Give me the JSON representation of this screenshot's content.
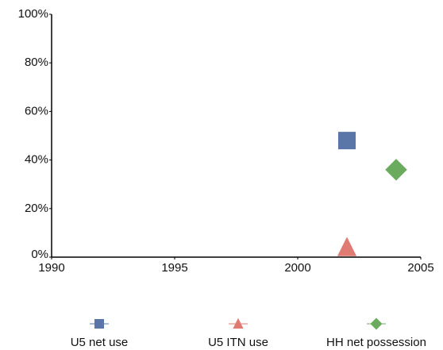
{
  "chart_data": {
    "type": "scatter",
    "xlim": [
      1990,
      2005
    ],
    "xticks": [
      1990,
      1995,
      2000,
      2005
    ],
    "ylim": [
      0,
      100
    ],
    "yticks": [
      {
        "value": 0,
        "label": "0%"
      },
      {
        "value": 20,
        "label": "20%"
      },
      {
        "value": 40,
        "label": "40%"
      },
      {
        "value": 60,
        "label": "60%"
      },
      {
        "value": 80,
        "label": "80%"
      },
      {
        "value": 100,
        "label": "100%"
      }
    ],
    "grid": false,
    "legend": "bottom",
    "series": [
      {
        "name": "U5 net use",
        "color": "#5a76a8",
        "marker": "square",
        "x": [
          2002
        ],
        "values": [
          48
        ]
      },
      {
        "name": "U5 ITN use",
        "color": "#e07b74",
        "marker": "triangle",
        "x": [
          2002
        ],
        "values": [
          4
        ]
      },
      {
        "name": "HH net possession",
        "color": "#6aab5e",
        "marker": "diamond",
        "x": [
          2004
        ],
        "values": [
          36
        ]
      }
    ]
  }
}
